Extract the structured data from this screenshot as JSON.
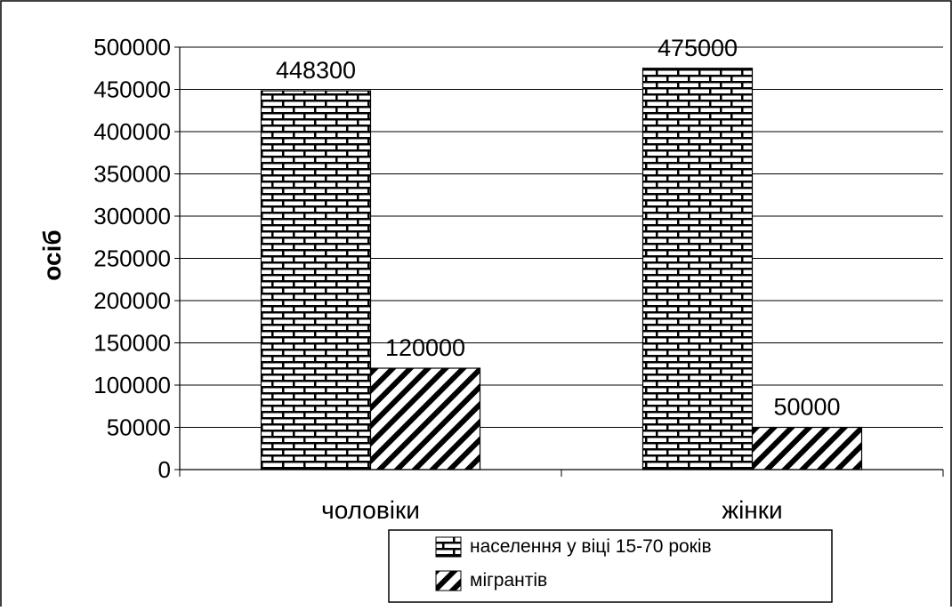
{
  "chart_data": {
    "type": "bar",
    "categories": [
      "чоловіки",
      "жінки"
    ],
    "series": [
      {
        "name": "населення у віці 15-70 років",
        "values": [
          448300,
          475000
        ],
        "pattern": "brick"
      },
      {
        "name": "мігрантів",
        "values": [
          120000,
          50000
        ],
        "pattern": "diagonal-hatch"
      }
    ],
    "data_labels": [
      [
        "448300",
        "475000"
      ],
      [
        "120000",
        "50000"
      ]
    ],
    "ylabel": "осіб",
    "xlabel": "",
    "ylim": [
      0,
      500000
    ],
    "yticks": [
      "0",
      "50000",
      "100000",
      "150000",
      "200000",
      "250000",
      "300000",
      "350000",
      "400000",
      "450000",
      "500000"
    ],
    "grid": true,
    "legend_position": "bottom-right",
    "colors": {
      "stroke": "#000000",
      "fill": "#ffffff",
      "grid": "#000000"
    }
  }
}
